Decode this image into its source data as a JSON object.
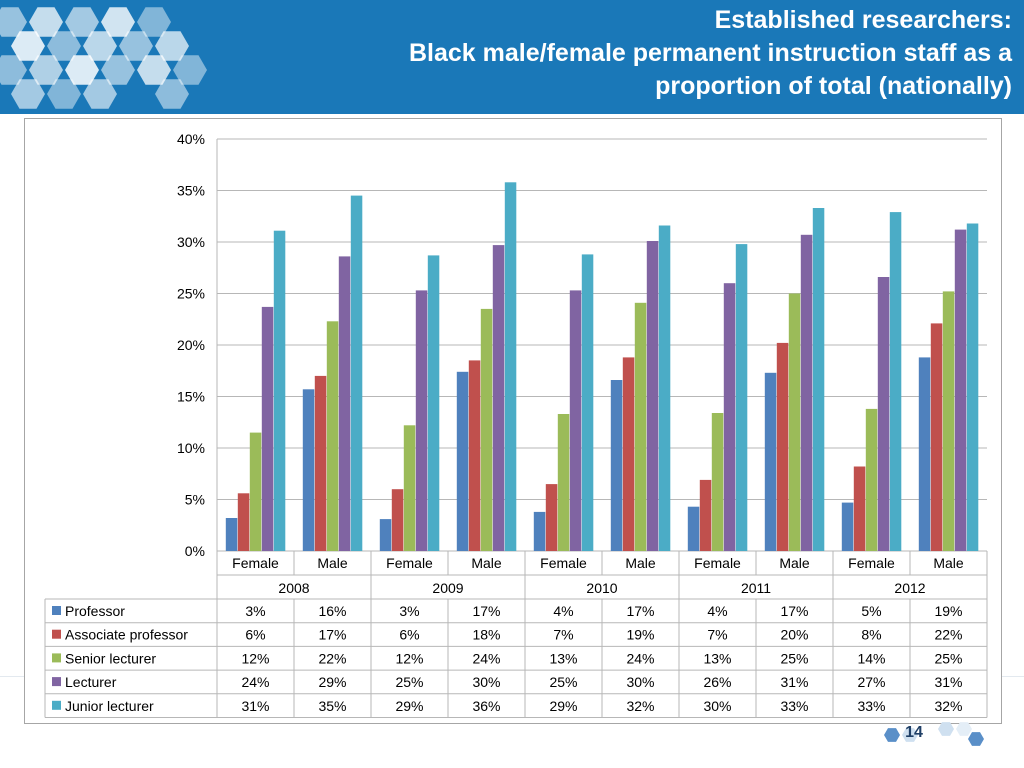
{
  "title": {
    "line1": "Established researchers:",
    "line2": "Black male/female permanent instruction staff as a",
    "line3": "proportion of total (nationally)"
  },
  "page_number": "14",
  "colors": {
    "header": "#1a78b8",
    "professor": "#4f81bd",
    "associate": "#c0504d",
    "senior": "#9bbb59",
    "lecturer": "#8064a2",
    "junior": "#4bacc6"
  },
  "chart_data": {
    "type": "bar",
    "y_axis": {
      "ticks": [
        "0%",
        "5%",
        "10%",
        "15%",
        "20%",
        "25%",
        "30%",
        "35%",
        "40%"
      ],
      "ylim": [
        0,
        40
      ],
      "unit": "%"
    },
    "grid": true,
    "years": [
      "2008",
      "2009",
      "2010",
      "2011",
      "2012"
    ],
    "genders": [
      "Female",
      "Male"
    ],
    "categories": [
      "2008 Female",
      "2008 Male",
      "2009 Female",
      "2009 Male",
      "2010 Female",
      "2010 Male",
      "2011 Female",
      "2011 Male",
      "2012 Female",
      "2012 Male"
    ],
    "series": [
      {
        "name": "Professor",
        "values": [
          3.2,
          15.7,
          3.1,
          17.4,
          3.8,
          16.6,
          4.3,
          17.3,
          4.7,
          18.8
        ],
        "labels": [
          "3%",
          "16%",
          "3%",
          "17%",
          "4%",
          "17%",
          "4%",
          "17%",
          "5%",
          "19%"
        ]
      },
      {
        "name": "Associate professor",
        "values": [
          5.6,
          17.0,
          6.0,
          18.5,
          6.5,
          18.8,
          6.9,
          20.2,
          8.2,
          22.1
        ],
        "labels": [
          "6%",
          "17%",
          "6%",
          "18%",
          "7%",
          "19%",
          "7%",
          "20%",
          "8%",
          "22%"
        ]
      },
      {
        "name": "Senior lecturer",
        "values": [
          11.5,
          22.3,
          12.2,
          23.5,
          13.3,
          24.1,
          13.4,
          25.0,
          13.8,
          25.2
        ],
        "labels": [
          "12%",
          "22%",
          "12%",
          "24%",
          "13%",
          "24%",
          "13%",
          "25%",
          "14%",
          "25%"
        ]
      },
      {
        "name": "Lecturer",
        "values": [
          23.7,
          28.6,
          25.3,
          29.7,
          25.3,
          30.1,
          26.0,
          30.7,
          26.6,
          31.2
        ],
        "labels": [
          "24%",
          "29%",
          "25%",
          "30%",
          "25%",
          "30%",
          "26%",
          "31%",
          "27%",
          "31%"
        ]
      },
      {
        "name": "Junior lecturer",
        "values": [
          31.1,
          34.5,
          28.7,
          35.8,
          28.8,
          31.6,
          29.8,
          33.3,
          32.9,
          31.8
        ],
        "labels": [
          "31%",
          "35%",
          "29%",
          "36%",
          "29%",
          "32%",
          "30%",
          "33%",
          "33%",
          "32%"
        ]
      }
    ]
  }
}
